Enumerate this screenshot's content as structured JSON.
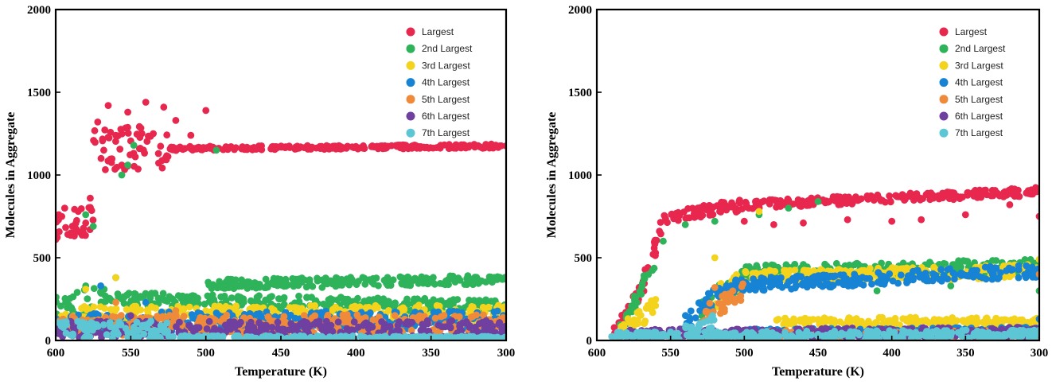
{
  "chart_data": [
    {
      "type": "scatter",
      "xlabel": "Temperature (K)",
      "ylabel": "Molecules in Aggregate",
      "xlim": [
        600,
        300
      ],
      "x_reversed": true,
      "ylim": [
        0,
        2000
      ],
      "x_ticks": [
        "600",
        "550",
        "500",
        "450",
        "400",
        "350",
        "300"
      ],
      "y_ticks": [
        "0",
        "500",
        "1000",
        "1500",
        "2000"
      ],
      "grid": false,
      "legend_position": "top-right",
      "series": [
        {
          "name": "Largest",
          "color": "#e8274f",
          "segments": [
            {
              "x0": 600,
              "x1": 575,
              "y0": 690,
              "y1": 720,
              "spread": 90
            },
            {
              "x0": 575,
              "x1": 525,
              "y0": 1150,
              "y1": 1160,
              "spread": 140
            },
            {
              "x0": 525,
              "x1": 300,
              "y0": 1160,
              "y1": 1175,
              "spread": 12
            }
          ],
          "samples": [
            [
              600,
              610
            ],
            [
              598,
              760
            ],
            [
              594,
              800
            ],
            [
              590,
              650
            ],
            [
              585,
              780
            ],
            [
              580,
              710
            ],
            [
              577,
              860
            ],
            [
              572,
              1320
            ],
            [
              568,
              1150
            ],
            [
              565,
              1420
            ],
            [
              560,
              1240
            ],
            [
              556,
              1060
            ],
            [
              552,
              1380
            ],
            [
              547,
              1110
            ],
            [
              540,
              1440
            ],
            [
              535,
              1250
            ],
            [
              528,
              1410
            ],
            [
              520,
              1330
            ],
            [
              510,
              1240
            ],
            [
              500,
              1390
            ],
            [
              480,
              1165
            ],
            [
              440,
              1170
            ],
            [
              400,
              1172
            ],
            [
              360,
              1174
            ],
            [
              320,
              1175
            ],
            [
              300,
              1176
            ]
          ]
        },
        {
          "name": "2nd Largest",
          "color": "#2fb35a",
          "segments": [
            {
              "x0": 600,
              "x1": 560,
              "y0": 200,
              "y1": 260,
              "spread": 80
            },
            {
              "x0": 560,
              "x1": 300,
              "y0": 250,
              "y1": 205,
              "spread": 40
            },
            {
              "x0": 500,
              "x1": 300,
              "y0": 340,
              "y1": 365,
              "spread": 30
            }
          ],
          "samples": [
            [
              580,
              760
            ],
            [
              575,
              690
            ],
            [
              556,
              1000
            ],
            [
              552,
              1060
            ],
            [
              548,
              1180
            ],
            [
              493,
              1150
            ],
            [
              580,
              330
            ],
            [
              560,
              380
            ],
            [
              460,
              370
            ],
            [
              420,
              375
            ],
            [
              380,
              360
            ],
            [
              340,
              360
            ],
            [
              300,
              370
            ],
            [
              470,
              240
            ],
            [
              400,
              220
            ],
            [
              350,
              205
            ],
            [
              300,
              210
            ]
          ]
        },
        {
          "name": "3rd Largest",
          "color": "#f4d31c",
          "segments": [
            {
              "x0": 600,
              "x1": 300,
              "y0": 150,
              "y1": 160,
              "spread": 55
            }
          ],
          "samples": [
            [
              560,
              380
            ],
            [
              580,
              310
            ],
            [
              540,
              230
            ],
            [
              500,
              180
            ],
            [
              400,
              170
            ],
            [
              300,
              155
            ]
          ]
        },
        {
          "name": "4th Largest",
          "color": "#1683d4",
          "segments": [
            {
              "x0": 600,
              "x1": 300,
              "y0": 110,
              "y1": 120,
              "spread": 60
            }
          ],
          "samples": [
            [
              570,
              330
            ],
            [
              540,
              230
            ],
            [
              450,
              140
            ],
            [
              350,
              120
            ]
          ]
        },
        {
          "name": "5th Largest",
          "color": "#ef8a3a",
          "segments": [
            {
              "x0": 600,
              "x1": 300,
              "y0": 90,
              "y1": 100,
              "spread": 60
            }
          ],
          "samples": [
            [
              560,
              230
            ],
            [
              520,
              180
            ],
            [
              430,
              120
            ],
            [
              330,
              90
            ]
          ]
        },
        {
          "name": "6th Largest",
          "color": "#6f40a0",
          "segments": [
            {
              "x0": 600,
              "x1": 300,
              "y0": 65,
              "y1": 70,
              "spread": 50
            }
          ],
          "samples": [
            [
              550,
              150
            ],
            [
              470,
              110
            ],
            [
              380,
              80
            ],
            [
              310,
              60
            ]
          ]
        },
        {
          "name": "7th Largest",
          "color": "#5cc6d4",
          "segments": [
            {
              "x0": 600,
              "x1": 525,
              "y0": 70,
              "y1": 60,
              "spread": 55
            },
            {
              "x0": 525,
              "x1": 300,
              "y0": 20,
              "y1": 15,
              "spread": 10
            }
          ],
          "samples": [
            [
              595,
              110
            ],
            [
              560,
              80
            ],
            [
              530,
              90
            ],
            [
              450,
              20
            ],
            [
              300,
              15
            ]
          ]
        }
      ]
    },
    {
      "type": "scatter",
      "xlabel": "Temperature (K)",
      "ylabel": "Molecules in Aggregate",
      "xlim": [
        600,
        300
      ],
      "x_reversed": true,
      "ylim": [
        0,
        2000
      ],
      "x_ticks": [
        "600",
        "550",
        "500",
        "450",
        "400",
        "350",
        "300"
      ],
      "y_ticks": [
        "0",
        "500",
        "1000",
        "1500",
        "2000"
      ],
      "grid": false,
      "legend_position": "top-right",
      "series": [
        {
          "name": "Largest",
          "color": "#e8274f",
          "segments": [
            {
              "x0": 590,
              "x1": 570,
              "y0": 30,
              "y1": 300,
              "spread": 40
            },
            {
              "x0": 570,
              "x1": 555,
              "y0": 300,
              "y1": 720,
              "spread": 60
            },
            {
              "x0": 555,
              "x1": 500,
              "y0": 740,
              "y1": 820,
              "spread": 40
            },
            {
              "x0": 500,
              "x1": 300,
              "y0": 820,
              "y1": 900,
              "spread": 25
            }
          ],
          "samples": [
            [
              500,
              720
            ],
            [
              480,
              700
            ],
            [
              460,
              710
            ],
            [
              430,
              730
            ],
            [
              400,
              720
            ],
            [
              380,
              730
            ],
            [
              350,
              760
            ],
            [
              320,
              820
            ],
            [
              300,
              750
            ]
          ]
        },
        {
          "name": "2nd Largest",
          "color": "#2fb35a",
          "segments": [
            {
              "x0": 585,
              "x1": 560,
              "y0": 50,
              "y1": 500,
              "spread": 50
            },
            {
              "x0": 530,
              "x1": 500,
              "y0": 150,
              "y1": 400,
              "spread": 80
            },
            {
              "x0": 500,
              "x1": 300,
              "y0": 410,
              "y1": 450,
              "spread": 45
            }
          ],
          "samples": [
            [
              555,
              600
            ],
            [
              540,
              700
            ],
            [
              520,
              720
            ],
            [
              490,
              760
            ],
            [
              470,
              800
            ],
            [
              450,
              840
            ],
            [
              410,
              300
            ],
            [
              360,
              330
            ],
            [
              300,
              300
            ]
          ]
        },
        {
          "name": "3rd Largest",
          "color": "#f4d31c",
          "segments": [
            {
              "x0": 585,
              "x1": 560,
              "y0": 40,
              "y1": 200,
              "spread": 60
            },
            {
              "x0": 520,
              "x1": 500,
              "y0": 250,
              "y1": 380,
              "spread": 70
            },
            {
              "x0": 500,
              "x1": 300,
              "y0": 380,
              "y1": 420,
              "spread": 40
            },
            {
              "x0": 480,
              "x1": 300,
              "y0": 120,
              "y1": 110,
              "spread": 25
            }
          ],
          "samples": [
            [
              520,
              500
            ],
            [
              490,
              780
            ],
            [
              300,
              490
            ]
          ]
        },
        {
          "name": "4th Largest",
          "color": "#1683d4",
          "segments": [
            {
              "x0": 540,
              "x1": 515,
              "y0": 100,
              "y1": 320,
              "spread": 50
            },
            {
              "x0": 515,
              "x1": 300,
              "y0": 330,
              "y1": 420,
              "spread": 40
            },
            {
              "x0": 500,
              "x1": 300,
              "y0": 50,
              "y1": 60,
              "spread": 20
            }
          ],
          "samples": [
            [
              300,
              130
            ],
            [
              350,
              60
            ]
          ]
        },
        {
          "name": "5th Largest",
          "color": "#ef8a3a",
          "segments": [
            {
              "x0": 530,
              "x1": 500,
              "y0": 150,
              "y1": 300,
              "spread": 60
            },
            {
              "x0": 500,
              "x1": 300,
              "y0": 40,
              "y1": 40,
              "spread": 20
            }
          ],
          "samples": [
            [
              300,
              400
            ],
            [
              520,
              320
            ]
          ]
        },
        {
          "name": "6th Largest",
          "color": "#6f40a0",
          "segments": [
            {
              "x0": 580,
              "x1": 300,
              "y0": 40,
              "y1": 50,
              "spread": 30
            }
          ],
          "samples": []
        },
        {
          "name": "7th Largest",
          "color": "#5cc6d4",
          "segments": [
            {
              "x0": 590,
              "x1": 300,
              "y0": 25,
              "y1": 40,
              "spread": 25
            },
            {
              "x0": 540,
              "x1": 520,
              "y0": 60,
              "y1": 120,
              "spread": 40
            }
          ],
          "samples": []
        }
      ]
    }
  ]
}
